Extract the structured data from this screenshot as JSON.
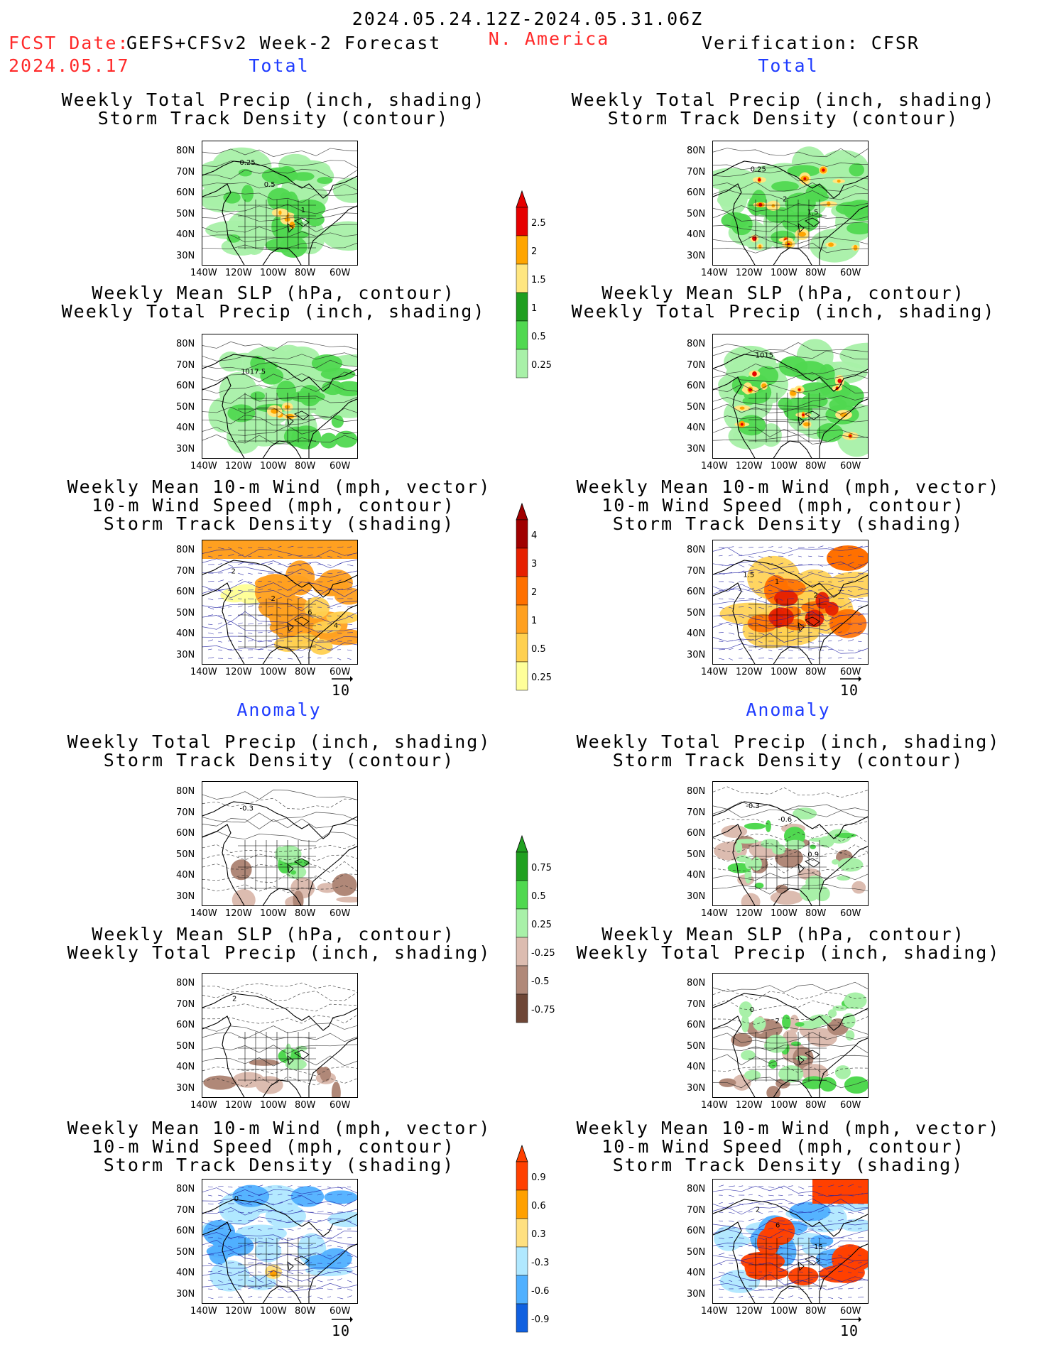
{
  "header": {
    "date_range": "2024.05.24.12Z-2024.05.31.06Z",
    "fcst_label": "FCST Date:",
    "fcst_date": "2024.05.17",
    "model": "GEFS+CFSv2 Week-2 Forecast",
    "region": "N. America",
    "verification": "Verification: CFSR"
  },
  "sections": {
    "total": "Total",
    "anomaly": "Anomaly"
  },
  "titles": {
    "precip_track": [
      "Weekly Total Precip (inch, shading)",
      "Storm Track Density (contour)"
    ],
    "slp_precip": [
      "Weekly Mean SLP (hPa, contour)",
      "Weekly Total Precip (inch, shading)"
    ],
    "wind_track": [
      "Weekly Mean 10-m Wind (mph, vector)",
      "10-m Wind Speed (mph, contour)",
      "Storm Track Density (shading)"
    ]
  },
  "axes": {
    "lat_ticks": [
      "80N",
      "70N",
      "60N",
      "50N",
      "40N",
      "30N"
    ],
    "lon_ticks": [
      "140W",
      "120W",
      "100W",
      "80W",
      "60W"
    ]
  },
  "vector_ref": "10",
  "colorbars": {
    "precip_total": [
      "2.5",
      "2",
      "1.5",
      "1",
      "0.5",
      "0.25"
    ],
    "track_total": [
      "4",
      "3",
      "2",
      "1",
      "0.5",
      "0.25"
    ],
    "precip_anom": [
      "0.75",
      "0.5",
      "0.25",
      "-0.25",
      "-0.5",
      "-0.75"
    ],
    "track_anom": [
      "0.9",
      "0.6",
      "0.3",
      "-0.3",
      "-0.6",
      "-0.9"
    ]
  },
  "colors": {
    "header_red": "#ff2a2a",
    "section_blue": "#1f3cff",
    "precip_scale": [
      "#e60000",
      "#ffa500",
      "#ffe680",
      "#1f9e1f",
      "#50d850",
      "#a8f0a8"
    ],
    "track_scale": [
      "#a00000",
      "#e62000",
      "#ff7000",
      "#ffa020",
      "#ffd050",
      "#ffff99"
    ],
    "anom_precip_scale": [
      "#20a020",
      "#50d850",
      "#a8f0a8",
      "#dcbcb0",
      "#b08878",
      "#6e4636"
    ],
    "anom_track_scale": [
      "#ff4000",
      "#ffa000",
      "#ffe080",
      "#b0e8ff",
      "#50b0ff",
      "#1060e0"
    ]
  },
  "map_labels": {
    "l1": [
      "0.25",
      "0.5",
      "1"
    ],
    "r1": [
      "0.25",
      "2",
      "1.5"
    ],
    "l2": [
      "1017.5"
    ],
    "r2": [
      "1015"
    ],
    "l3": [
      "2",
      "2",
      "6",
      "4"
    ],
    "r3": [
      "1.5",
      "1",
      "2"
    ],
    "l4": [
      "-0.3"
    ],
    "r4": [
      "-0.3",
      "-0.6",
      "0.9"
    ],
    "l5": [
      "2"
    ],
    "r5": [
      "0",
      "2"
    ],
    "l6": [
      "0"
    ],
    "r6": [
      "2",
      "6",
      "15"
    ]
  }
}
